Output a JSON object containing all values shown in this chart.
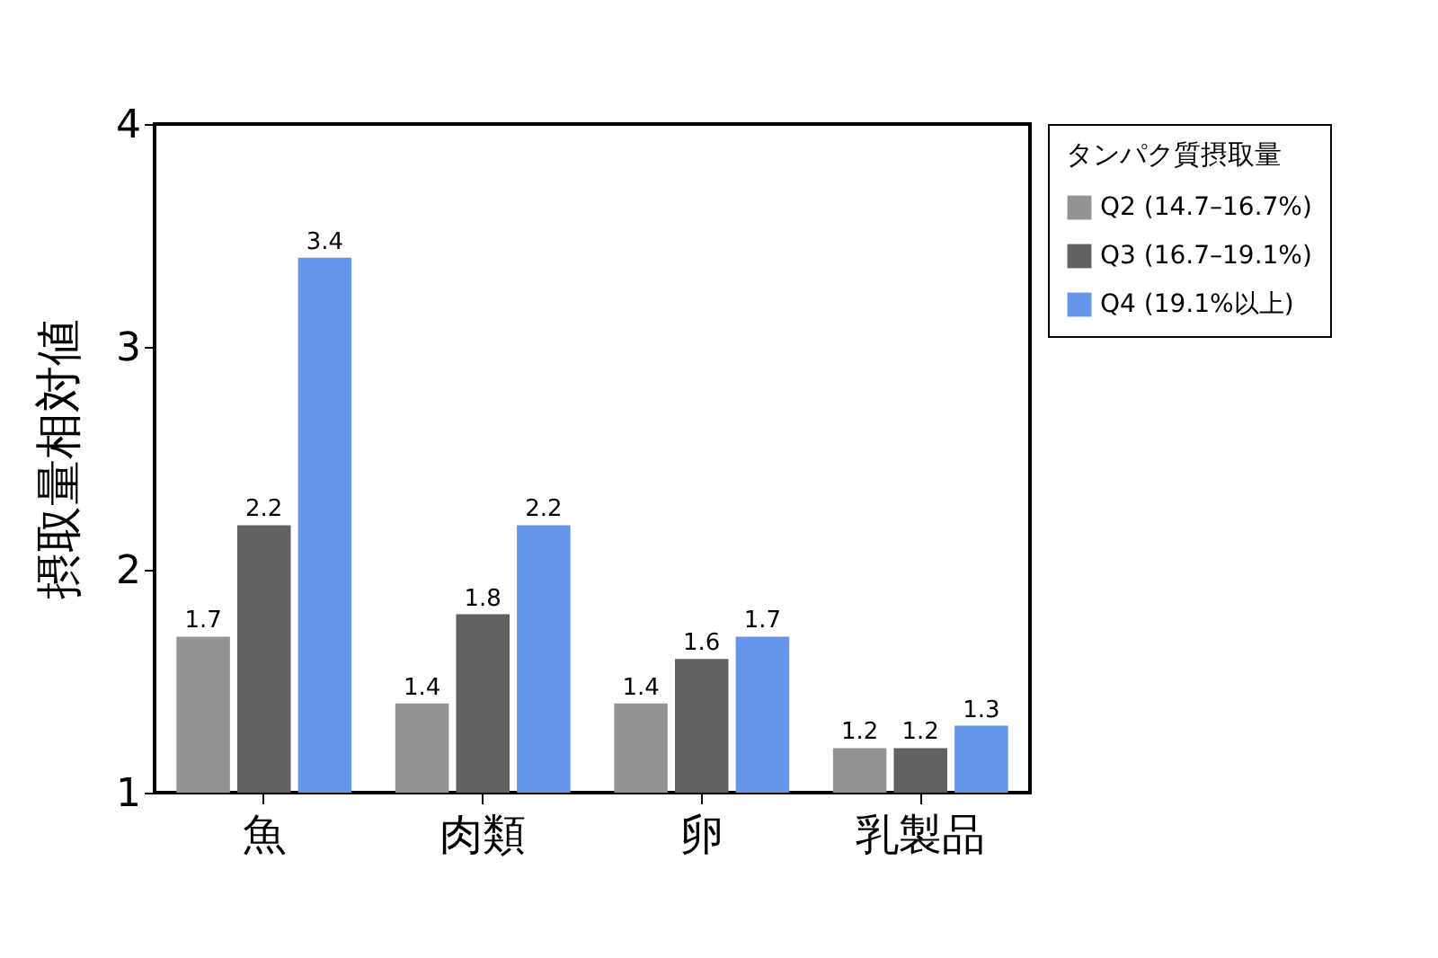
{
  "chart_data": {
    "type": "bar",
    "ylabel": "摂取量相対値",
    "legend_title": "タンパク質摂取量",
    "categories": [
      "魚",
      "肉類",
      "卵",
      "乳製品"
    ],
    "series": [
      {
        "name": "Q2 (14.7–16.7%)",
        "color": "#939393",
        "values": [
          1.7,
          1.4,
          1.4,
          1.2
        ]
      },
      {
        "name": "Q3 (16.7–19.1%)",
        "color": "#616161",
        "values": [
          2.2,
          1.8,
          1.6,
          1.2
        ]
      },
      {
        "name": "Q4 (19.1%以上)",
        "color": "#6495e8",
        "values": [
          3.4,
          2.2,
          1.7,
          1.3
        ]
      }
    ],
    "ylim": [
      1,
      4
    ],
    "yticks": [
      1,
      2,
      3,
      4
    ],
    "data_labels": true,
    "grid": false,
    "legend": "right"
  }
}
